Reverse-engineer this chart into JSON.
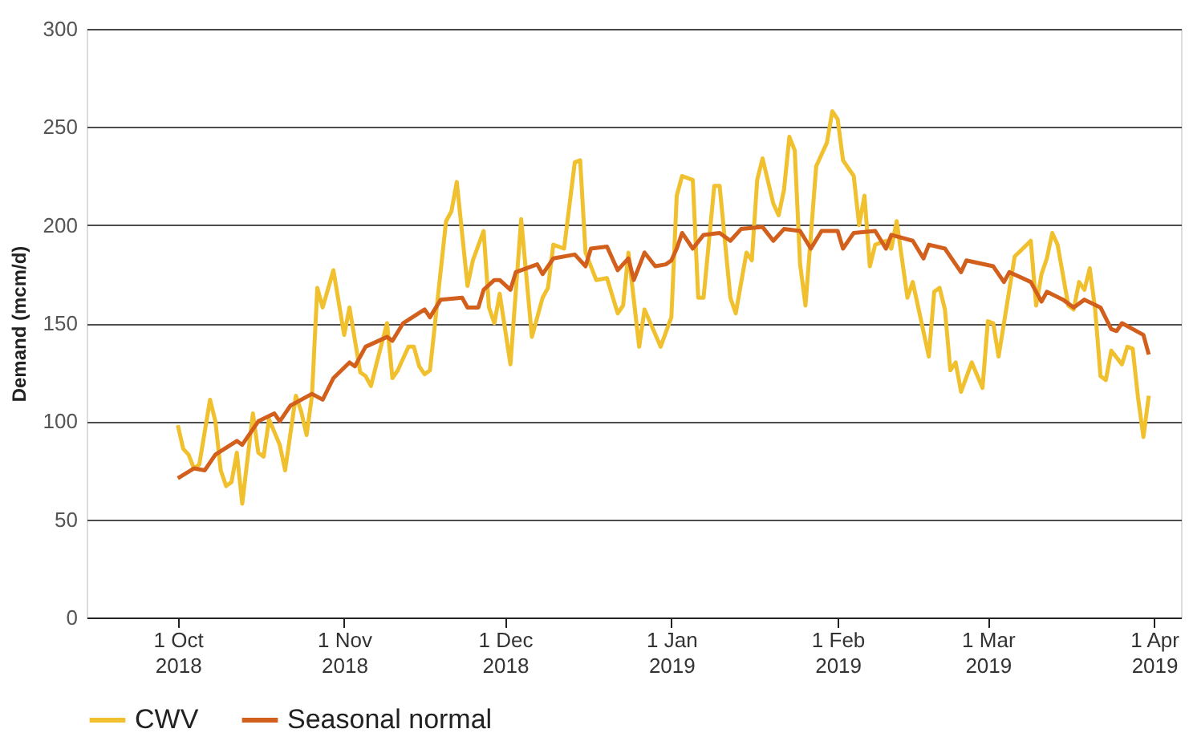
{
  "chart_data": {
    "type": "line",
    "ylabel": "Demand (mcm/d)",
    "ylim": [
      0,
      300
    ],
    "yticks": [
      0,
      50,
      100,
      150,
      200,
      250,
      300
    ],
    "xlim": [
      "2018-09-14",
      "2019-04-06"
    ],
    "xticks": [
      {
        "value": "2018-10-01",
        "label": "1 Oct 2018"
      },
      {
        "value": "2018-11-01",
        "label": "1 Nov 2018"
      },
      {
        "value": "2018-12-01",
        "label": "1 Dec 2018"
      },
      {
        "value": "2019-01-01",
        "label": "1 Jan 2019"
      },
      {
        "value": "2019-02-01",
        "label": "1 Feb 2019"
      },
      {
        "value": "2019-03-01",
        "label": "1 Mar 2019"
      },
      {
        "value": "2019-04-01",
        "label": "1 Apr 2019"
      }
    ],
    "grid": "y",
    "legend": "bottom left",
    "marker": "none",
    "line_style": "solid",
    "series": [
      {
        "name": "CWV",
        "color": "#f0c02e",
        "x": [
          "2018-10-01",
          "2018-10-02",
          "2018-10-03",
          "2018-10-04",
          "2018-10-05",
          "2018-10-07",
          "2018-10-08",
          "2018-10-09",
          "2018-10-10",
          "2018-10-11",
          "2018-10-12",
          "2018-10-13",
          "2018-10-15",
          "2018-10-16",
          "2018-10-17",
          "2018-10-18",
          "2018-10-20",
          "2018-10-21",
          "2018-10-23",
          "2018-10-24",
          "2018-10-25",
          "2018-10-26",
          "2018-10-27",
          "2018-10-28",
          "2018-10-30",
          "2018-11-01",
          "2018-11-02",
          "2018-11-04",
          "2018-11-05",
          "2018-11-06",
          "2018-11-07",
          "2018-11-09",
          "2018-11-10",
          "2018-11-11",
          "2018-11-13",
          "2018-11-14",
          "2018-11-15",
          "2018-11-16",
          "2018-11-17",
          "2018-11-20",
          "2018-11-21",
          "2018-11-22",
          "2018-11-24",
          "2018-11-25",
          "2018-11-27",
          "2018-11-28",
          "2018-11-29",
          "2018-11-30",
          "2018-12-02",
          "2018-12-04",
          "2018-12-06",
          "2018-12-08",
          "2018-12-09",
          "2018-12-10",
          "2018-12-12",
          "2018-12-14",
          "2018-12-15",
          "2018-12-16",
          "2018-12-18",
          "2018-12-20",
          "2018-12-22",
          "2018-12-23",
          "2018-12-24",
          "2018-12-26",
          "2018-12-27",
          "2018-12-30",
          "2019-01-01",
          "2019-01-02",
          "2019-01-03",
          "2019-01-05",
          "2019-01-06",
          "2019-01-07",
          "2019-01-09",
          "2019-01-10",
          "2019-01-12",
          "2019-01-13",
          "2019-01-15",
          "2019-01-16",
          "2019-01-17",
          "2019-01-18",
          "2019-01-20",
          "2019-01-21",
          "2019-01-22",
          "2019-01-23",
          "2019-01-24",
          "2019-01-25",
          "2019-01-26",
          "2019-01-28",
          "2019-01-30",
          "2019-01-31",
          "2019-02-01",
          "2019-02-02",
          "2019-02-04",
          "2019-02-05",
          "2019-02-06",
          "2019-02-07",
          "2019-02-08",
          "2019-02-10",
          "2019-02-11",
          "2019-02-12",
          "2019-02-14",
          "2019-02-15",
          "2019-02-18",
          "2019-02-19",
          "2019-02-20",
          "2019-02-21",
          "2019-02-22",
          "2019-02-23",
          "2019-02-24",
          "2019-02-26",
          "2019-02-28",
          "2019-03-01",
          "2019-03-02",
          "2019-03-03",
          "2019-03-05",
          "2019-03-06",
          "2019-03-09",
          "2019-03-10",
          "2019-03-11",
          "2019-03-12",
          "2019-03-13",
          "2019-03-14",
          "2019-03-16",
          "2019-03-17",
          "2019-03-18",
          "2019-03-19",
          "2019-03-20",
          "2019-03-21",
          "2019-03-22",
          "2019-03-23",
          "2019-03-24",
          "2019-03-26",
          "2019-03-27",
          "2019-03-28",
          "2019-03-29",
          "2019-03-30",
          "2019-03-31"
        ],
        "values": [
          98,
          86,
          83,
          76,
          78,
          111,
          100,
          75,
          67,
          69,
          84,
          58,
          104,
          84,
          82,
          101,
          88,
          75,
          113,
          105,
          93,
          113,
          168,
          158,
          177,
          144,
          158,
          125,
          123,
          118,
          129,
          150,
          122,
          126,
          138,
          138,
          128,
          124,
          126,
          202,
          207,
          222,
          169,
          182,
          197,
          158,
          150,
          165,
          129,
          203,
          143,
          163,
          168,
          190,
          188,
          232,
          233,
          186,
          172,
          173,
          155,
          159,
          186,
          138,
          157,
          138,
          153,
          215,
          225,
          223,
          163,
          163,
          220,
          220,
          163,
          155,
          186,
          182,
          223,
          234,
          211,
          205,
          218,
          245,
          238,
          180,
          159,
          230,
          242,
          258,
          254,
          233,
          225,
          200,
          215,
          179,
          190,
          192,
          188,
          202,
          163,
          171,
          133,
          166,
          168,
          157,
          126,
          130,
          115,
          130,
          117,
          151,
          150,
          133,
          167,
          184,
          192,
          159,
          175,
          183,
          196,
          190,
          159,
          157,
          171,
          167,
          178,
          157,
          123,
          121,
          136,
          129,
          138,
          137,
          112,
          92,
          113
        ]
      },
      {
        "name": "Seasonal normal",
        "color": "#d35f1c",
        "x": [
          "2018-10-01",
          "2018-10-04",
          "2018-10-06",
          "2018-10-08",
          "2018-10-12",
          "2018-10-13",
          "2018-10-16",
          "2018-10-19",
          "2018-10-20",
          "2018-10-22",
          "2018-10-26",
          "2018-10-28",
          "2018-10-30",
          "2018-11-02",
          "2018-11-03",
          "2018-11-05",
          "2018-11-09",
          "2018-11-10",
          "2018-11-12",
          "2018-11-16",
          "2018-11-17",
          "2018-11-19",
          "2018-11-23",
          "2018-11-24",
          "2018-11-26",
          "2018-11-27",
          "2018-11-29",
          "2018-11-30",
          "2018-12-02",
          "2018-12-03",
          "2018-12-07",
          "2018-12-08",
          "2018-12-10",
          "2018-12-14",
          "2018-12-16",
          "2018-12-17",
          "2018-12-20",
          "2018-12-22",
          "2018-12-24",
          "2018-12-25",
          "2018-12-27",
          "2018-12-29",
          "2018-12-31",
          "2019-01-01",
          "2019-01-02",
          "2019-01-03",
          "2019-01-05",
          "2019-01-07",
          "2019-01-10",
          "2019-01-12",
          "2019-01-14",
          "2019-01-18",
          "2019-01-20",
          "2019-01-22",
          "2019-01-25",
          "2019-01-27",
          "2019-01-29",
          "2019-02-01",
          "2019-02-02",
          "2019-02-04",
          "2019-02-08",
          "2019-02-10",
          "2019-02-11",
          "2019-02-15",
          "2019-02-17",
          "2019-02-18",
          "2019-02-21",
          "2019-02-22",
          "2019-02-24",
          "2019-02-25",
          "2019-03-02",
          "2019-03-04",
          "2019-03-05",
          "2019-03-09",
          "2019-03-11",
          "2019-03-12",
          "2019-03-15",
          "2019-03-17",
          "2019-03-19",
          "2019-03-22",
          "2019-03-24",
          "2019-03-25",
          "2019-03-26",
          "2019-03-30",
          "2019-03-31"
        ],
        "values": [
          71,
          76,
          75,
          83,
          90,
          88,
          100,
          104,
          100,
          108,
          114,
          111,
          122,
          130,
          128,
          138,
          143,
          141,
          150,
          157,
          153,
          162,
          163,
          158,
          158,
          167,
          172,
          172,
          167,
          176,
          180,
          175,
          183,
          185,
          179,
          188,
          189,
          177,
          183,
          172,
          186,
          179,
          180,
          182,
          188,
          196,
          188,
          195,
          196,
          192,
          198,
          199,
          192,
          198,
          197,
          188,
          197,
          197,
          188,
          196,
          197,
          188,
          195,
          192,
          183,
          190,
          188,
          184,
          176,
          182,
          179,
          171,
          176,
          171,
          161,
          166,
          162,
          158,
          162,
          158,
          147,
          146,
          150,
          144,
          134
        ]
      }
    ]
  }
}
